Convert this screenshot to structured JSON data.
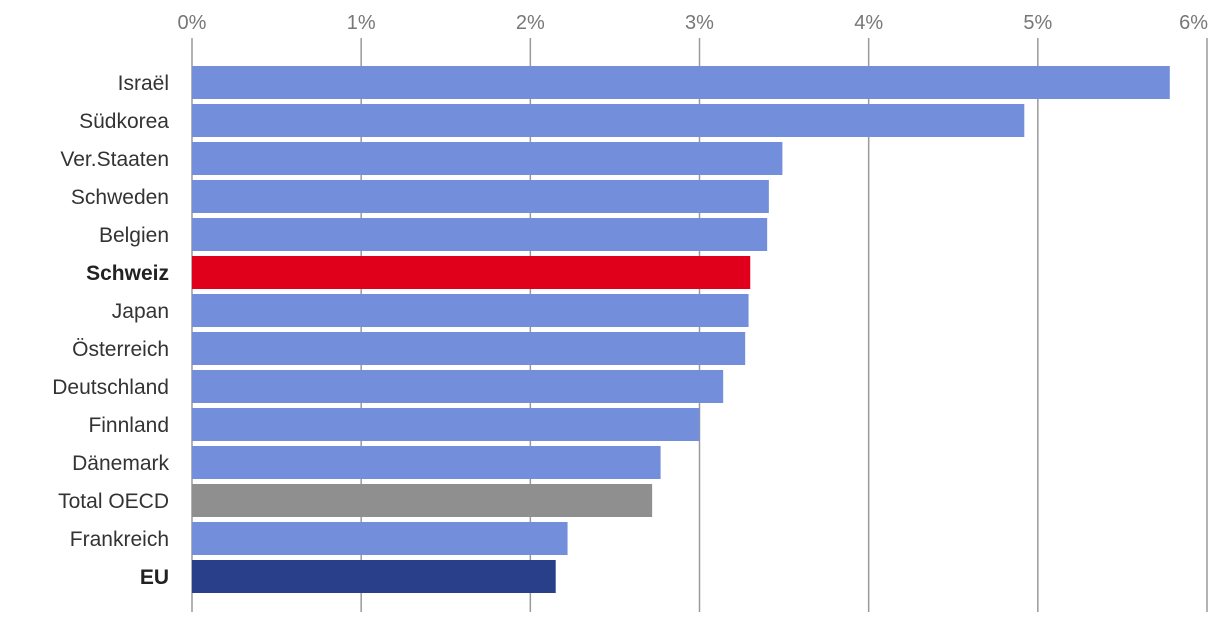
{
  "chart_data": {
    "type": "bar",
    "orientation": "horizontal",
    "title": "",
    "xlabel": "",
    "ylabel": "",
    "xlim": [
      0,
      6
    ],
    "ticks": [
      {
        "value": 0,
        "label": "0%"
      },
      {
        "value": 1,
        "label": "1%"
      },
      {
        "value": 2,
        "label": "2%"
      },
      {
        "value": 3,
        "label": "3%"
      },
      {
        "value": 4,
        "label": "4%"
      },
      {
        "value": 5,
        "label": "5%"
      },
      {
        "value": 6,
        "label": "6%"
      }
    ],
    "grid": true,
    "colors": {
      "default": "#738edb",
      "highlight": "#e0001b",
      "oecd": "#8f8f8f",
      "eu": "#2a3f8a"
    },
    "bars": [
      {
        "label": "Israël",
        "value": 5.78,
        "color": "default",
        "bold": false
      },
      {
        "label": "Südkorea",
        "value": 4.92,
        "color": "default",
        "bold": false
      },
      {
        "label": "Ver.Staaten",
        "value": 3.49,
        "color": "default",
        "bold": false
      },
      {
        "label": "Schweden",
        "value": 3.41,
        "color": "default",
        "bold": false
      },
      {
        "label": "Belgien",
        "value": 3.4,
        "color": "default",
        "bold": false
      },
      {
        "label": "Schweiz",
        "value": 3.3,
        "color": "highlight",
        "bold": true
      },
      {
        "label": "Japan",
        "value": 3.29,
        "color": "default",
        "bold": false
      },
      {
        "label": "Österreich",
        "value": 3.27,
        "color": "default",
        "bold": false
      },
      {
        "label": "Deutschland",
        "value": 3.14,
        "color": "default",
        "bold": false
      },
      {
        "label": "Finnland",
        "value": 3.0,
        "color": "default",
        "bold": false
      },
      {
        "label": "Dänemark",
        "value": 2.77,
        "color": "default",
        "bold": false
      },
      {
        "label": "Total OECD",
        "value": 2.72,
        "color": "oecd",
        "bold": false
      },
      {
        "label": "Frankreich",
        "value": 2.22,
        "color": "default",
        "bold": false
      },
      {
        "label": "EU",
        "value": 2.15,
        "color": "eu",
        "bold": true
      }
    ]
  }
}
